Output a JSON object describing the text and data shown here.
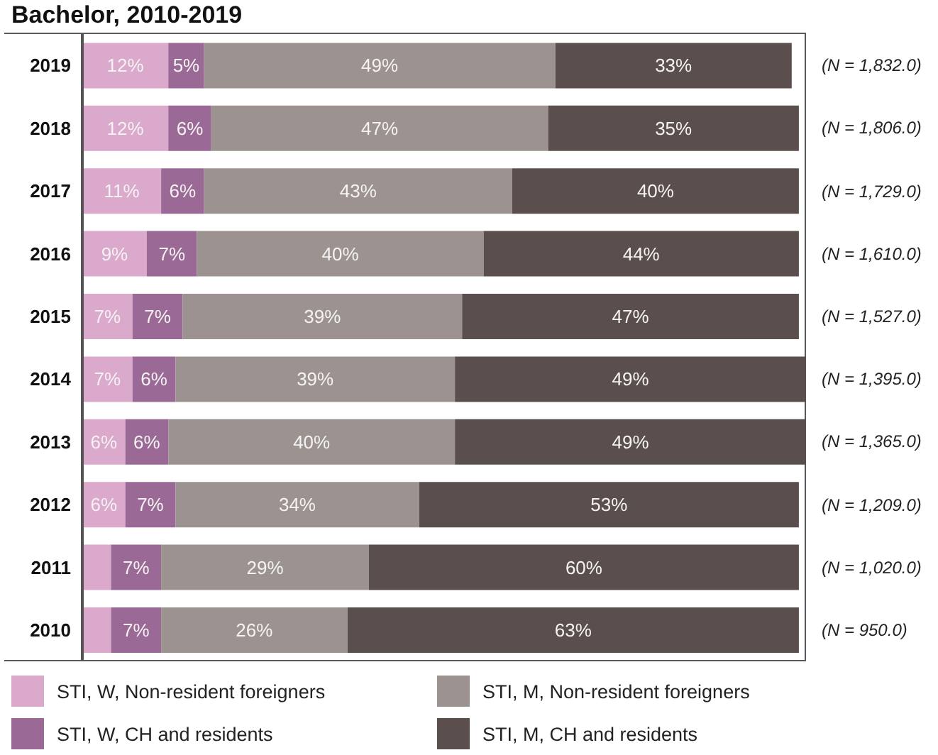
{
  "chart_data": {
    "type": "bar",
    "title": "Bachelor, 2010-2019",
    "orientation": "horizontal",
    "stacked": true,
    "tick_labels": "y",
    "legend": "bottom",
    "categories": [
      "2019",
      "2018",
      "2017",
      "2016",
      "2015",
      "2014",
      "2013",
      "2012",
      "2011",
      "2010"
    ],
    "series": [
      {
        "name": "STI, W, Non-resident foreigners",
        "color": "#dba9cb",
        "values": [
          12,
          12,
          11,
          9,
          7,
          7,
          6,
          6,
          4,
          4
        ],
        "value_labels": [
          "12%",
          "12%",
          "11%",
          "9%",
          "7%",
          "7%",
          "6%",
          "6%",
          null,
          null
        ]
      },
      {
        "name": "STI, W, CH and residents",
        "color": "#9b6996",
        "values": [
          5,
          6,
          6,
          7,
          7,
          6,
          6,
          7,
          7,
          7
        ],
        "value_labels": [
          "5%",
          "6%",
          "6%",
          "7%",
          "7%",
          "6%",
          "6%",
          "7%",
          "7%",
          "7%"
        ]
      },
      {
        "name": "STI, M, Non-resident foreigners",
        "color": "#9c9390",
        "values": [
          49,
          47,
          43,
          40,
          39,
          39,
          40,
          34,
          29,
          26
        ],
        "value_labels": [
          "49%",
          "47%",
          "43%",
          "40%",
          "39%",
          "39%",
          "40%",
          "34%",
          "29%",
          "26%"
        ]
      },
      {
        "name": "STI, M, CH and residents",
        "color": "#5a4f4c",
        "values": [
          33,
          35,
          40,
          44,
          47,
          49,
          49,
          53,
          60,
          63
        ],
        "value_labels": [
          "33%",
          "35%",
          "40%",
          "44%",
          "47%",
          "49%",
          "49%",
          "53%",
          "60%",
          "63%"
        ]
      }
    ],
    "annotations": [
      "(N = 1,832.0)",
      "(N = 1,806.0)",
      "(N = 1,729.0)",
      "(N = 1,610.0)",
      "(N = 1,527.0)",
      "(N = 1,395.0)",
      "(N = 1,365.0)",
      "(N = 1,209.0)",
      "(N = 1,020.0)",
      "(N = 950.0)"
    ]
  }
}
